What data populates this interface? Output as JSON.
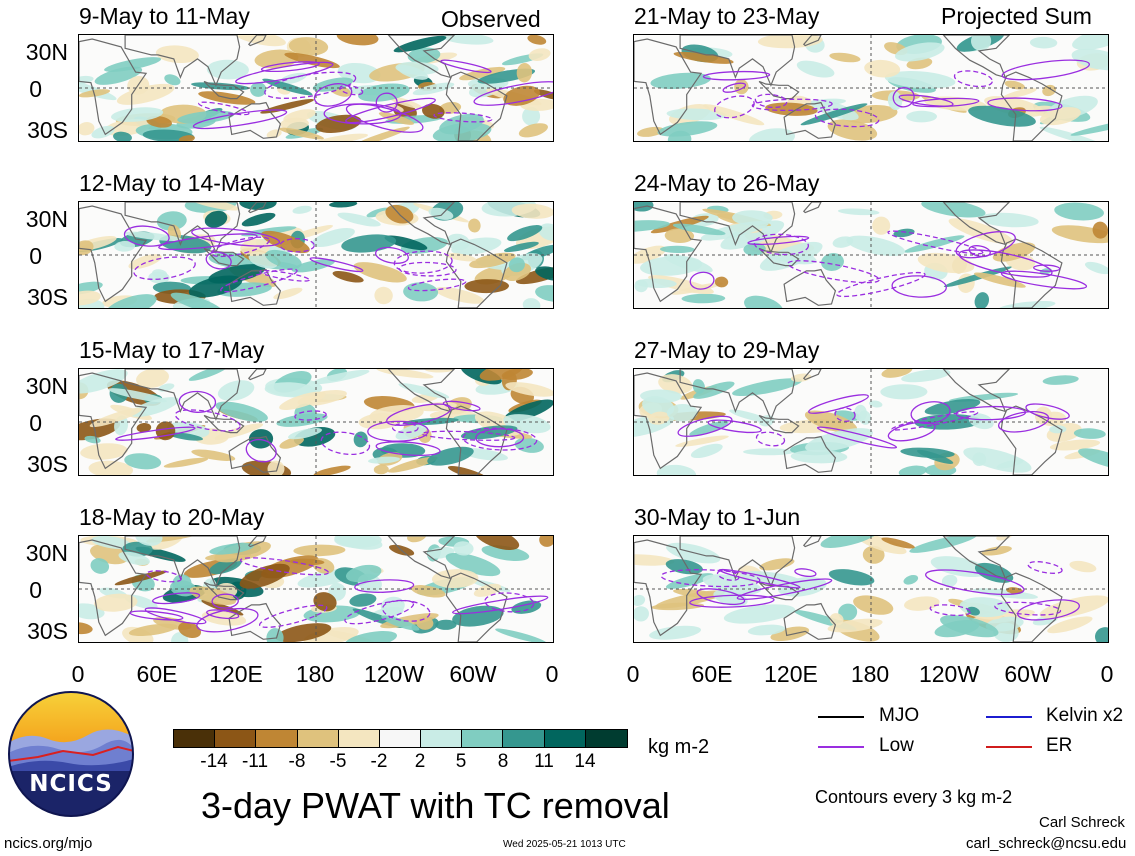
{
  "tags": {
    "observed": "Observed",
    "projected": "Projected Sum"
  },
  "panels": [
    {
      "title": "9-May to 11-May",
      "column": "left"
    },
    {
      "title": "12-May to 14-May",
      "column": "left"
    },
    {
      "title": "15-May to 17-May",
      "column": "left"
    },
    {
      "title": "18-May to 20-May",
      "column": "left"
    },
    {
      "title": "21-May to 23-May",
      "column": "right"
    },
    {
      "title": "24-May to 26-May",
      "column": "right"
    },
    {
      "title": "27-May to 29-May",
      "column": "right"
    },
    {
      "title": "30-May to 1-Jun",
      "column": "right"
    }
  ],
  "y_axis_labels": [
    "30N",
    "0",
    "30S"
  ],
  "x_axis_labels": [
    "0",
    "60E",
    "120E",
    "180",
    "120W",
    "60W",
    "0"
  ],
  "colorbar": {
    "colors": [
      "#4a3008",
      "#8c5616",
      "#bf8634",
      "#dfc27d",
      "#f4e6c0",
      "#f7f7f7",
      "#c9ece6",
      "#80cdc1",
      "#35978f",
      "#01665e",
      "#003c30"
    ],
    "labels": [
      "-14",
      "-11",
      "-8",
      "-5",
      "-2",
      "2",
      "5",
      "8",
      "11",
      "14"
    ],
    "units": "kg m-2"
  },
  "legend": {
    "items": [
      {
        "label": "MJO",
        "color": "#000000"
      },
      {
        "label": "Kelvin x2",
        "color": "#1c1cd0"
      },
      {
        "label": "Low",
        "color": "#9a2ee0"
      },
      {
        "label": "ER",
        "color": "#d01c1c"
      }
    ],
    "contour_note": "Contours every 3 kg m-2"
  },
  "main_title": "3-day PWAT with TC removal",
  "logo_text": "NCICS",
  "footer": {
    "url": "ncics.org/mjo",
    "timestamp": "Wed 2025-05-21 1013 UTC",
    "author": "Carl Schreck",
    "email": "carl_schreck@ncsu.edu"
  }
}
